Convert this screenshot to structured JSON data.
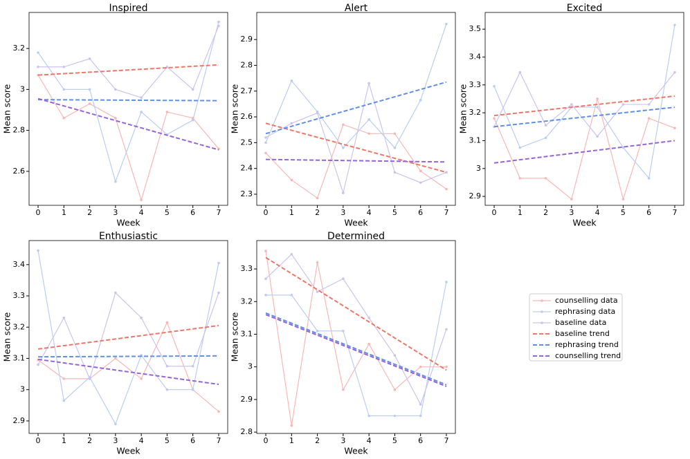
{
  "legend": [
    {
      "name": "counselling data",
      "color": "#f7b8b4",
      "dashed": false,
      "marker": true
    },
    {
      "name": "rephrasing data",
      "color": "#b9cdf3",
      "dashed": false,
      "marker": true
    },
    {
      "name": "baseline data",
      "color": "#cbc3ef",
      "dashed": false,
      "marker": true
    },
    {
      "name": "baseline trend",
      "color": "#f07566",
      "dashed": true,
      "marker": false
    },
    {
      "name": "rephrasing trend",
      "color": "#5f8ee6",
      "dashed": true,
      "marker": false
    },
    {
      "name": "counselling trend",
      "color": "#9363d9",
      "dashed": true,
      "marker": false
    }
  ],
  "chart_data": [
    {
      "type": "line",
      "title": "Inspired",
      "xlabel": "Week",
      "ylabel": "Mean score",
      "x": [
        0,
        1,
        2,
        3,
        4,
        5,
        6,
        7
      ],
      "xlim": [
        -0.35,
        7.35
      ],
      "xticks": [
        0,
        1,
        2,
        3,
        4,
        5,
        6,
        7
      ],
      "ylim": [
        2.434,
        3.376
      ],
      "yticks": [
        2.6,
        2.8,
        3.0,
        3.2
      ],
      "series": [
        {
          "values": [
            3.07,
            2.86,
            2.93,
            2.86,
            2.46,
            2.89,
            2.86,
            2.71
          ]
        },
        {
          "values": [
            3.18,
            3.0,
            3.0,
            2.55,
            2.89,
            2.78,
            2.85,
            3.33
          ]
        },
        {
          "values": [
            3.11,
            3.11,
            3.15,
            3.0,
            2.96,
            3.11,
            3.0,
            3.31
          ]
        },
        {
          "x": [
            0,
            7
          ],
          "values": [
            3.07,
            3.12
          ]
        },
        {
          "x": [
            0,
            7
          ],
          "values": [
            2.95,
            2.945
          ]
        },
        {
          "x": [
            0,
            7
          ],
          "values": [
            2.955,
            2.705
          ]
        }
      ]
    },
    {
      "type": "line",
      "title": "Alert",
      "xlabel": "Week",
      "ylabel": "Mean score",
      "x": [
        0,
        1,
        2,
        3,
        4,
        5,
        6,
        7
      ],
      "xlim": [
        -0.35,
        7.35
      ],
      "xticks": [
        0,
        1,
        2,
        3,
        4,
        5,
        6,
        7
      ],
      "ylim": [
        2.257,
        3.005
      ],
      "yticks": [
        2.3,
        2.4,
        2.5,
        2.6,
        2.7,
        2.8,
        2.9
      ],
      "series": [
        {
          "values": [
            2.46,
            2.355,
            2.285,
            2.57,
            2.535,
            2.535,
            2.39,
            2.32
          ]
        },
        {
          "values": [
            2.5,
            2.74,
            2.62,
            2.48,
            2.59,
            2.48,
            2.665,
            2.96
          ]
        },
        {
          "values": [
            2.52,
            2.575,
            2.615,
            2.305,
            2.73,
            2.385,
            2.345,
            2.385
          ]
        },
        {
          "x": [
            0,
            7
          ],
          "values": [
            2.575,
            2.385
          ]
        },
        {
          "x": [
            0,
            7
          ],
          "values": [
            2.535,
            2.735
          ]
        },
        {
          "x": [
            0,
            7
          ],
          "values": [
            2.435,
            2.425
          ]
        }
      ]
    },
    {
      "type": "line",
      "title": "Excited",
      "xlabel": "Week",
      "ylabel": "Mean score",
      "x": [
        0,
        1,
        2,
        3,
        4,
        5,
        6,
        7
      ],
      "xlim": [
        -0.35,
        7.35
      ],
      "xticks": [
        0,
        1,
        2,
        3,
        4,
        5,
        6,
        7
      ],
      "ylim": [
        2.868,
        3.56
      ],
      "yticks": [
        2.9,
        3.0,
        3.1,
        3.2,
        3.3,
        3.4,
        3.5
      ],
      "series": [
        {
          "values": [
            3.18,
            2.965,
            2.965,
            2.89,
            3.25,
            2.89,
            3.18,
            3.145
          ]
        },
        {
          "values": [
            3.295,
            3.075,
            3.11,
            3.22,
            3.22,
            3.075,
            2.965,
            3.515
          ]
        },
        {
          "values": [
            3.15,
            3.345,
            3.155,
            3.23,
            3.115,
            3.23,
            3.23,
            3.345
          ]
        },
        {
          "x": [
            0,
            7
          ],
          "values": [
            3.19,
            3.26
          ]
        },
        {
          "x": [
            0,
            7
          ],
          "values": [
            3.15,
            3.22
          ]
        },
        {
          "x": [
            0,
            7
          ],
          "values": [
            3.02,
            3.1
          ]
        }
      ]
    },
    {
      "type": "line",
      "title": "Enthusiastic",
      "xlabel": "Week",
      "ylabel": "Mean score",
      "x": [
        0,
        1,
        2,
        3,
        4,
        5,
        6,
        7
      ],
      "xlim": [
        -0.35,
        7.35
      ],
      "xticks": [
        0,
        1,
        2,
        3,
        4,
        5,
        6,
        7
      ],
      "ylim": [
        2.86,
        3.477
      ],
      "yticks": [
        2.9,
        3.0,
        3.1,
        3.2,
        3.3,
        3.4
      ],
      "series": [
        {
          "values": [
            3.095,
            3.035,
            3.035,
            3.1,
            3.035,
            3.215,
            3.0,
            2.93
          ]
        },
        {
          "values": [
            3.445,
            2.965,
            3.04,
            2.89,
            3.11,
            3.0,
            3.0,
            3.405
          ]
        },
        {
          "values": [
            3.08,
            3.23,
            3.035,
            3.31,
            3.23,
            3.075,
            3.075,
            3.31
          ]
        },
        {
          "x": [
            0,
            7
          ],
          "values": [
            3.13,
            3.205
          ]
        },
        {
          "x": [
            0,
            7
          ],
          "values": [
            3.105,
            3.108
          ]
        },
        {
          "x": [
            0,
            7
          ],
          "values": [
            3.097,
            3.017
          ]
        }
      ]
    },
    {
      "type": "line",
      "title": "Determined",
      "xlabel": "Week",
      "ylabel": "Mean score",
      "x": [
        0,
        1,
        2,
        3,
        4,
        5,
        6,
        7
      ],
      "xlim": [
        -0.35,
        7.35
      ],
      "xticks": [
        0,
        1,
        2,
        3,
        4,
        5,
        6,
        7
      ],
      "ylim": [
        2.796,
        3.387
      ],
      "yticks": [
        2.8,
        2.9,
        3.0,
        3.1,
        3.2,
        3.3
      ],
      "series": [
        {
          "values": [
            3.355,
            2.82,
            3.32,
            2.93,
            3.07,
            2.93,
            3.0,
            3.0
          ]
        },
        {
          "values": [
            3.22,
            3.22,
            3.11,
            3.11,
            2.85,
            2.85,
            2.85,
            3.26
          ]
        },
        {
          "values": [
            3.27,
            3.345,
            3.23,
            3.27,
            3.15,
            3.035,
            2.885,
            3.115
          ]
        },
        {
          "x": [
            0,
            7
          ],
          "values": [
            3.335,
            2.99
          ]
        },
        {
          "x": [
            0,
            7
          ],
          "values": [
            3.165,
            2.945
          ]
        },
        {
          "x": [
            0,
            7
          ],
          "values": [
            3.16,
            2.94
          ]
        }
      ]
    }
  ]
}
